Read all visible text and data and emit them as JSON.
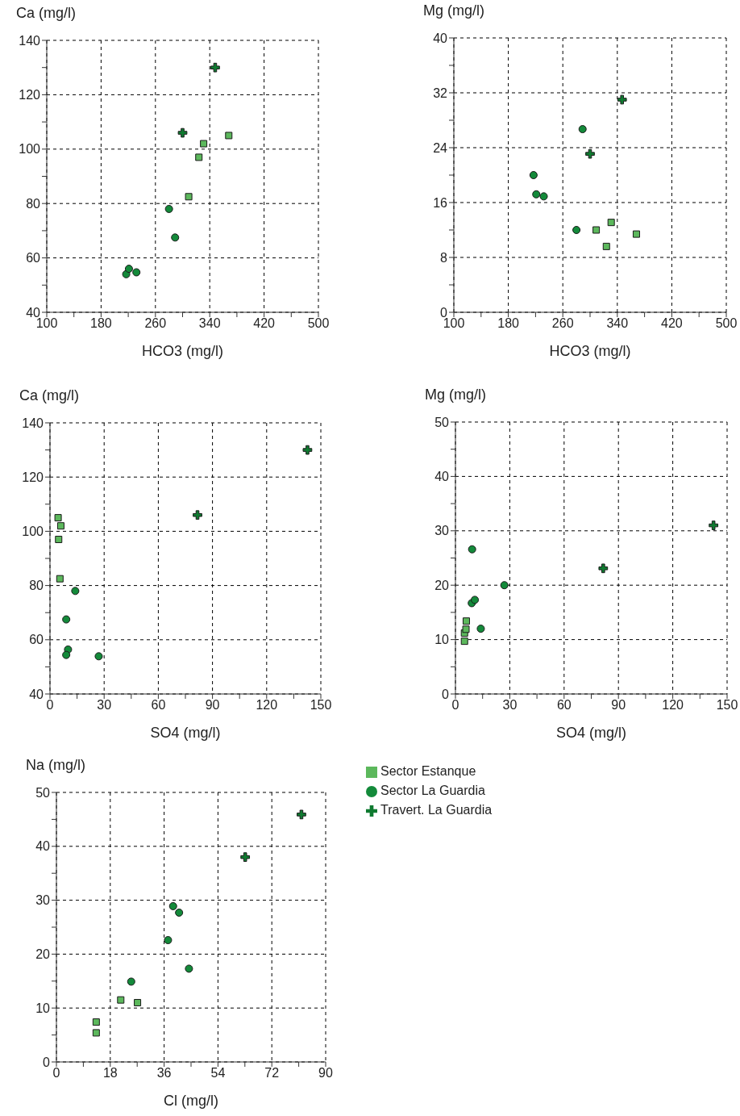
{
  "chart_data": [
    {
      "type": "scatter",
      "xlabel": "HCO3 (mg/l)",
      "ylabel": "Ca (mg/l)",
      "xlim": [
        100,
        500
      ],
      "ylim": [
        40,
        140
      ],
      "grid": true,
      "xticks": [
        100,
        {
          "value": 140,
          "label": null
        },
        180,
        {
          "value": 220,
          "label": null
        },
        260,
        {
          "value": 300,
          "label": null
        },
        340,
        {
          "value": 380,
          "label": null
        },
        420,
        {
          "value": 460,
          "label": null
        },
        500
      ],
      "yticks": [
        40,
        {
          "value": 50,
          "label": null
        },
        60,
        {
          "value": 70,
          "label": null
        },
        80,
        {
          "value": 90,
          "label": null
        },
        100,
        {
          "value": 110,
          "label": null
        },
        120,
        {
          "value": 130,
          "label": null
        },
        140
      ],
      "series": [
        {
          "marker": "square",
          "color": "#5cb85c",
          "x": [
            368,
            331,
            324,
            309
          ],
          "values": [
            105,
            102,
            97,
            82.5
          ]
        },
        {
          "marker": "circle",
          "color": "#138a3a",
          "x": [
            280,
            289,
            217,
            221,
            232
          ],
          "values": [
            78,
            67.5,
            54,
            56,
            54.7
          ]
        },
        {
          "marker": "cross",
          "color": "#0f7a30",
          "x": [
            348,
            300
          ],
          "values": [
            130,
            106
          ]
        }
      ]
    },
    {
      "type": "scatter",
      "xlabel": "HCO3 (mg/l)",
      "ylabel": "Mg (mg/l)",
      "xlim": [
        100,
        500
      ],
      "ylim": [
        0,
        40
      ],
      "grid": true,
      "xticks": [
        100,
        {
          "value": 140,
          "label": null
        },
        180,
        {
          "value": 220,
          "label": null
        },
        260,
        {
          "value": 300,
          "label": null
        },
        340,
        {
          "value": 380,
          "label": null
        },
        420,
        {
          "value": 460,
          "label": null
        },
        500
      ],
      "yticks": [
        0,
        {
          "value": 4,
          "label": null
        },
        8,
        {
          "value": 12,
          "label": null
        },
        16,
        {
          "value": 20,
          "label": null
        },
        24,
        {
          "value": 28,
          "label": null
        },
        32,
        {
          "value": 36,
          "label": null
        },
        40
      ],
      "series": [
        {
          "marker": "square",
          "color": "#5cb85c",
          "x": [
            368,
            331,
            324,
            309
          ],
          "values": [
            11.4,
            13.1,
            9.6,
            12
          ]
        },
        {
          "marker": "circle",
          "color": "#138a3a",
          "x": [
            280,
            289,
            217,
            221,
            232
          ],
          "values": [
            12,
            26.7,
            20,
            17.2,
            16.9
          ]
        },
        {
          "marker": "cross",
          "color": "#0f7a30",
          "x": [
            347,
            300
          ],
          "values": [
            31,
            23.1
          ]
        }
      ]
    },
    {
      "type": "scatter",
      "xlabel": "SO4 (mg/l)",
      "ylabel": "Ca (mg/l)",
      "xlim": [
        0,
        150
      ],
      "ylim": [
        40,
        140
      ],
      "grid": true,
      "xticks": [
        0,
        {
          "value": 15,
          "label": null
        },
        30,
        {
          "value": 45,
          "label": null
        },
        60,
        {
          "value": 75,
          "label": null
        },
        90,
        {
          "value": 105,
          "label": null
        },
        120,
        {
          "value": 135,
          "label": null
        },
        150
      ],
      "yticks": [
        40,
        {
          "value": 50,
          "label": null
        },
        60,
        {
          "value": 70,
          "label": null
        },
        80,
        {
          "value": 90,
          "label": null
        },
        100,
        {
          "value": 110,
          "label": null
        },
        120,
        {
          "value": 130,
          "label": null
        },
        140
      ],
      "series": [
        {
          "marker": "square",
          "color": "#5cb85c",
          "x": [
            4.5,
            6,
            4.8,
            5.5
          ],
          "values": [
            105,
            102,
            97,
            82.5
          ]
        },
        {
          "marker": "circle",
          "color": "#138a3a",
          "x": [
            14,
            9,
            10,
            9,
            27
          ],
          "values": [
            78,
            67.5,
            56.4,
            54.4,
            53.9
          ]
        },
        {
          "marker": "cross",
          "color": "#0f7a30",
          "x": [
            142.6,
            81.7
          ],
          "values": [
            130,
            106
          ]
        }
      ]
    },
    {
      "type": "scatter",
      "xlabel": "SO4 (mg/l)",
      "ylabel": "Mg (mg/l)",
      "xlim": [
        0,
        150
      ],
      "ylim": [
        0,
        50
      ],
      "grid": true,
      "xticks": [
        0,
        {
          "value": 15,
          "label": null
        },
        30,
        {
          "value": 45,
          "label": null
        },
        60,
        {
          "value": 75,
          "label": null
        },
        90,
        {
          "value": 105,
          "label": null
        },
        120,
        {
          "value": 135,
          "label": null
        },
        150
      ],
      "yticks": [
        0,
        {
          "value": 5,
          "label": null
        },
        10,
        {
          "value": 15,
          "label": null
        },
        20,
        {
          "value": 25,
          "label": null
        },
        30,
        {
          "value": 35,
          "label": null
        },
        40,
        {
          "value": 45,
          "label": null
        },
        50
      ],
      "series": [
        {
          "marker": "square",
          "color": "#5cb85c",
          "x": [
            5,
            6,
            5,
            5.8
          ],
          "values": [
            11.2,
            13.4,
            9.7,
            11.9
          ]
        },
        {
          "marker": "circle",
          "color": "#138a3a",
          "x": [
            9.2,
            27,
            9,
            10.7,
            14
          ],
          "values": [
            26.6,
            20,
            16.7,
            17.3,
            12
          ]
        },
        {
          "marker": "cross",
          "color": "#0f7a30",
          "x": [
            142.5,
            81.6
          ],
          "values": [
            31,
            23.1
          ]
        }
      ]
    },
    {
      "type": "scatter",
      "xlabel": "Cl (mg/l)",
      "ylabel": "Na (mg/l)",
      "xlim": [
        0,
        90
      ],
      "ylim": [
        0,
        50
      ],
      "grid": true,
      "legend": "right",
      "xticks": [
        0,
        {
          "value": 9,
          "label": null
        },
        18,
        {
          "value": 27,
          "label": null
        },
        36,
        {
          "value": 45,
          "label": null
        },
        54,
        {
          "value": 63,
          "label": null
        },
        72,
        {
          "value": 81,
          "label": null
        },
        90
      ],
      "yticks": [
        0,
        {
          "value": 5,
          "label": null
        },
        10,
        {
          "value": 15,
          "label": null
        },
        20,
        {
          "value": 25,
          "label": null
        },
        30,
        {
          "value": 35,
          "label": null
        },
        40,
        {
          "value": 45,
          "label": null
        },
        50
      ],
      "series": [
        {
          "name": "Sector Estanque",
          "marker": "square",
          "color": "#5cb85c",
          "x": [
            13.3,
            13.3,
            21.5,
            27.1
          ],
          "values": [
            7.4,
            5.4,
            11.5,
            11
          ]
        },
        {
          "name": "Sector La Guardia",
          "marker": "circle",
          "color": "#138a3a",
          "x": [
            39,
            41,
            37.3,
            44.3,
            25
          ],
          "values": [
            28.9,
            27.7,
            22.6,
            17.3,
            14.9
          ]
        },
        {
          "name": "Travert. La Guardia",
          "marker": "cross",
          "color": "#0f7a30",
          "x": [
            81.9,
            63.1
          ],
          "values": [
            45.9,
            38
          ]
        }
      ]
    }
  ]
}
